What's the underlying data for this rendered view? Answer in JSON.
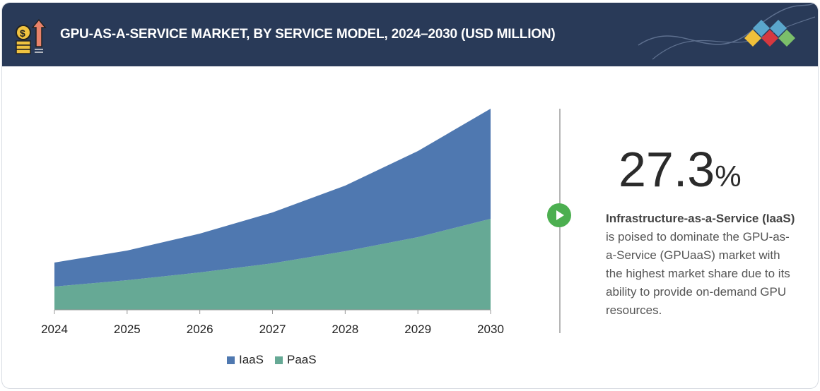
{
  "header": {
    "title": "GPU-AS-A-SERVICE  MARKET, BY SERVICE MODEL, 2024–2030 (USD MILLION)",
    "left_icon": "coins-arrow-up-icon",
    "logo": "colored-diamonds-logo"
  },
  "chart_data": {
    "type": "area",
    "stacked": true,
    "title": "GPU-AS-A-SERVICE  MARKET, BY SERVICE MODEL, 2024–2030 (USD MILLION)",
    "categories": [
      "2024",
      "2025",
      "2026",
      "2027",
      "2028",
      "2029",
      "2030"
    ],
    "series": [
      {
        "name": "PaaS",
        "color": "#66a995",
        "values": [
          33,
          42,
          53,
          66,
          83,
          103,
          129
        ]
      },
      {
        "name": "IaaS",
        "color": "#4f78b0",
        "values": [
          34,
          42,
          55,
          72,
          93,
          122,
          156
        ]
      }
    ],
    "ylim": [
      0,
      285
    ],
    "grid": false,
    "legend_position": "bottom"
  },
  "legend": [
    {
      "label": "IaaS",
      "color": "#4f78b0"
    },
    {
      "label": "PaaS",
      "color": "#66a995"
    }
  ],
  "highlight": {
    "value": "27.3",
    "unit": "%",
    "desc_bold": "Infrastructure-as-a-Service (IaaS)",
    "desc_rest": " is poised to dominate the GPU-as-a-Service (GPUaaS) market with the highest market share due to its ability to provide on-demand GPU resources."
  }
}
